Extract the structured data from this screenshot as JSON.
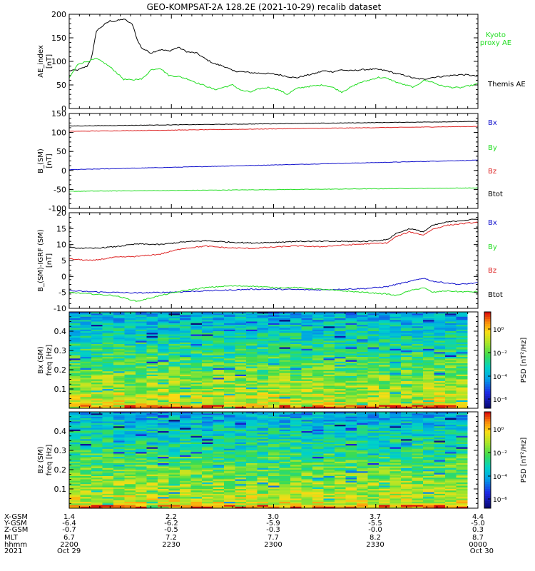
{
  "title": "GEO-KOMPSAT-2A 128.2E (2021-10-29) recalib dataset",
  "colors": {
    "black": "#000000",
    "green": "#22dd22",
    "red": "#dd2222",
    "blue": "#1111cc",
    "frame": "#000000"
  },
  "chart_data": [
    {
      "type": "line",
      "ylabel": "AE_index",
      "yunit": "[nT]",
      "ylim": [
        0,
        200
      ],
      "yticks": [
        0,
        50,
        100,
        150,
        200
      ],
      "x": [
        0,
        2,
        4,
        5,
        6,
        8,
        9,
        10,
        12,
        14,
        15,
        16,
        18,
        20,
        22,
        24,
        26,
        28,
        30,
        32,
        34,
        36,
        38,
        40,
        42,
        44,
        46,
        48,
        50,
        52,
        54,
        56,
        58,
        60,
        62,
        64,
        66,
        68,
        70,
        72,
        74,
        76,
        78,
        80,
        82,
        84,
        86,
        88,
        90
      ],
      "series": [
        {
          "name": "Themis AE",
          "color": "#000000",
          "values": [
            80,
            82,
            90,
            110,
            165,
            180,
            186,
            185,
            190,
            178,
            145,
            128,
            118,
            125,
            122,
            130,
            120,
            118,
            105,
            95,
            90,
            80,
            78,
            76,
            75,
            74,
            72,
            68,
            65,
            70,
            74,
            80,
            78,
            82,
            80,
            82,
            83,
            83,
            80,
            74,
            70,
            64,
            62,
            66,
            68,
            70,
            72,
            71,
            68
          ]
        },
        {
          "name": "Kyoto proxy AE",
          "color": "#22dd22",
          "values": [
            65,
            95,
            100,
            103,
            106,
            95,
            88,
            80,
            62,
            60,
            63,
            62,
            82,
            86,
            70,
            68,
            63,
            55,
            48,
            40,
            45,
            50,
            38,
            35,
            42,
            45,
            40,
            30,
            42,
            46,
            48,
            50,
            45,
            35,
            45,
            55,
            60,
            66,
            64,
            56,
            50,
            45,
            60,
            56,
            48,
            45,
            44,
            48,
            52
          ]
        }
      ]
    },
    {
      "type": "line",
      "ylabel": "B_(SM)",
      "yunit": "[nT]",
      "ylim": [
        -100,
        150
      ],
      "yticks": [
        -100,
        -50,
        0,
        50,
        100,
        150
      ],
      "x": [
        0,
        90
      ],
      "series": [
        {
          "name": "Bx",
          "color": "#1111cc",
          "values": [
            2,
            27
          ]
        },
        {
          "name": "By",
          "color": "#22dd22",
          "values": [
            -55,
            -46
          ]
        },
        {
          "name": "Bz",
          "color": "#dd2222",
          "values": [
            103,
            116
          ]
        },
        {
          "name": "Btot",
          "color": "#000000",
          "values": [
            117,
            129
          ]
        }
      ]
    },
    {
      "type": "line",
      "ylabel": "B_(SM)-IGRF (SM)",
      "yunit": "[nT]",
      "ylim": [
        -10,
        20
      ],
      "yticks": [
        -10,
        -5,
        0,
        5,
        10,
        15,
        20
      ],
      "x": [
        0,
        5,
        10,
        15,
        20,
        25,
        30,
        35,
        40,
        45,
        50,
        55,
        60,
        65,
        70,
        72,
        75,
        78,
        80,
        83,
        86,
        90
      ],
      "series": [
        {
          "name": "Bx",
          "color": "#1111cc",
          "values": [
            -4.5,
            -4.8,
            -5.0,
            -5.2,
            -5.0,
            -4.8,
            -4.5,
            -4.3,
            -4.0,
            -4.0,
            -4.1,
            -4.2,
            -4.0,
            -3.8,
            -3.2,
            -2.5,
            -1.6,
            -0.5,
            -1.5,
            -2.0,
            -2.5,
            -2.0
          ]
        },
        {
          "name": "By",
          "color": "#22dd22",
          "values": [
            -5.0,
            -5.5,
            -6.0,
            -7.8,
            -6.0,
            -4.5,
            -3.5,
            -3.0,
            -3.0,
            -3.5,
            -3.5,
            -4.0,
            -4.5,
            -5.0,
            -5.5,
            -6.0,
            -4.5,
            -3.5,
            -5.0,
            -4.5,
            -4.8,
            -4.8
          ]
        },
        {
          "name": "Bz",
          "color": "#dd2222",
          "values": [
            5.5,
            5.0,
            6.0,
            6.3,
            7.0,
            8.8,
            9.5,
            9.0,
            8.8,
            9.2,
            9.6,
            9.3,
            9.8,
            10.2,
            10.5,
            12.5,
            14.0,
            13.0,
            14.8,
            16.0,
            16.5,
            17.0
          ]
        },
        {
          "name": "Btot",
          "color": "#000000",
          "values": [
            9.0,
            8.8,
            9.3,
            10.2,
            10.0,
            10.8,
            11.2,
            10.8,
            10.5,
            10.7,
            11.0,
            11.0,
            11.0,
            11.0,
            11.5,
            13.5,
            15.0,
            14.0,
            16.0,
            17.0,
            17.5,
            18.0
          ]
        }
      ]
    },
    {
      "type": "heatmap",
      "ylabel": "Bx (SM)",
      "yunit": "freq [Hz]",
      "ylim": [
        0,
        0.5
      ],
      "yticks": [
        0.1,
        0.2,
        0.3,
        0.4
      ],
      "zlabel": "PSD [nT²/Hz]",
      "zticks": [
        "10⁰",
        "10⁻²",
        "10⁻⁴",
        "10⁻⁶"
      ]
    },
    {
      "type": "heatmap",
      "ylabel": "Bz (SM)",
      "yunit": "freq [Hz]",
      "ylim": [
        0,
        0.5
      ],
      "yticks": [
        0.1,
        0.2,
        0.3,
        0.4
      ],
      "zlabel": "PSD [nT²/Hz]",
      "zticks": [
        "10⁰",
        "10⁻²",
        "10⁻⁴",
        "10⁻⁶"
      ]
    }
  ],
  "legend_ae": {
    "green": "Kyoto\nproxy AE",
    "black": "Themis AE"
  },
  "ephemeris": {
    "row_labels": [
      "X-GSM",
      "Y-GSM",
      "Z-GSM",
      "MLT",
      "hhmm",
      "2021"
    ],
    "columns": [
      [
        "1.4",
        "-6.4",
        "-0.7",
        "6.7",
        "2200",
        "Oct 29"
      ],
      [
        "2.2",
        "-6.2",
        "-0.5",
        "7.2",
        "2230",
        ""
      ],
      [
        "3.0",
        "-5.9",
        "-0.3",
        "7.7",
        "2300",
        ""
      ],
      [
        "3.7",
        "-5.5",
        "-0.0",
        "8.2",
        "2330",
        ""
      ],
      [
        "4.4",
        "-5.0",
        "0.3",
        "8.7",
        "0000",
        "Oct 30"
      ]
    ]
  }
}
